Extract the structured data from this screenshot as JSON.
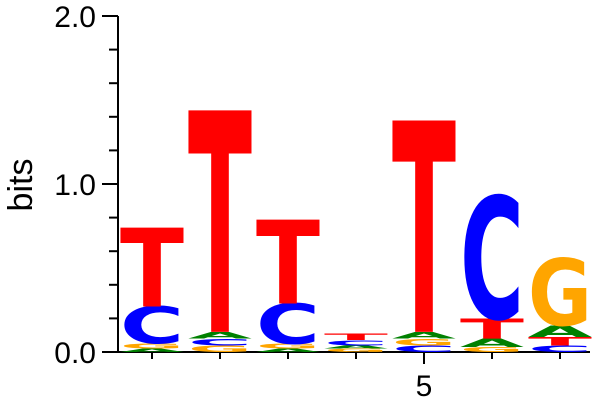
{
  "chart_data": {
    "type": "sequence-logo",
    "ylabel": "bits",
    "ylim": [
      0,
      2
    ],
    "y_ticks": [
      "0.0",
      "1.0",
      "2.0"
    ],
    "x_ticks": [
      {
        "position": 5,
        "label": "5"
      }
    ],
    "colors": {
      "A": "#008000",
      "C": "#0000ff",
      "G": "#ffa500",
      "T": "#ff0000"
    },
    "positions": [
      {
        "position": 1,
        "letters": [
          {
            "letter": "A",
            "height": 0.02
          },
          {
            "letter": "G",
            "height": 0.03
          },
          {
            "letter": "C",
            "height": 0.22
          },
          {
            "letter": "T",
            "height": 0.47
          }
        ]
      },
      {
        "position": 2,
        "letters": [
          {
            "letter": "G",
            "height": 0.04
          },
          {
            "letter": "C",
            "height": 0.04
          },
          {
            "letter": "A",
            "height": 0.04
          },
          {
            "letter": "T",
            "height": 1.32
          }
        ]
      },
      {
        "position": 3,
        "letters": [
          {
            "letter": "A",
            "height": 0.02
          },
          {
            "letter": "G",
            "height": 0.03
          },
          {
            "letter": "C",
            "height": 0.24
          },
          {
            "letter": "T",
            "height": 0.5
          }
        ]
      },
      {
        "position": 4,
        "letters": [
          {
            "letter": "G",
            "height": 0.02
          },
          {
            "letter": "A",
            "height": 0.02
          },
          {
            "letter": "C",
            "height": 0.03
          },
          {
            "letter": "T",
            "height": 0.04
          }
        ]
      },
      {
        "position": 5,
        "letters": [
          {
            "letter": "C",
            "height": 0.04
          },
          {
            "letter": "G",
            "height": 0.04
          },
          {
            "letter": "A",
            "height": 0.04
          },
          {
            "letter": "T",
            "height": 1.26
          }
        ]
      },
      {
        "position": 6,
        "letters": [
          {
            "letter": "G",
            "height": 0.03
          },
          {
            "letter": "A",
            "height": 0.05
          },
          {
            "letter": "T",
            "height": 0.12
          },
          {
            "letter": "C",
            "height": 0.73
          }
        ]
      },
      {
        "position": 7,
        "letters": [
          {
            "letter": "C",
            "height": 0.04
          },
          {
            "letter": "T",
            "height": 0.05
          },
          {
            "letter": "A",
            "height": 0.07
          },
          {
            "letter": "G",
            "height": 0.4
          }
        ]
      }
    ]
  }
}
